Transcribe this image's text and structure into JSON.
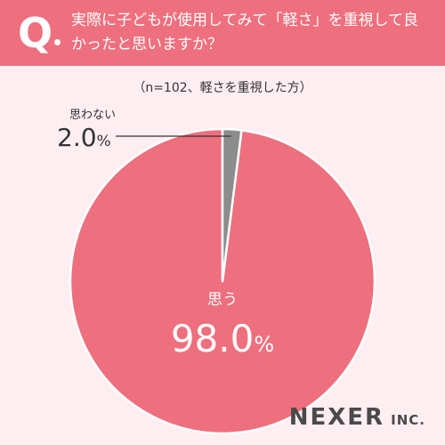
{
  "header": {
    "q_mark": "Q",
    "question": "実際に子どもが使用してみて「軽さ」を重視して良かったと思いますか？"
  },
  "note": "（n=102、軽さを重視した方）",
  "chart_data": {
    "type": "pie",
    "start_angle_deg": 0,
    "direction": "counterclockwise",
    "slices": [
      {
        "label": "思う",
        "value": 98.0,
        "value_text": "98.0",
        "color": "#ee6f7d"
      },
      {
        "label": "思わない",
        "value": 2.0,
        "value_text": "2.0",
        "color": "#8c8c8c"
      }
    ],
    "unit": "%"
  },
  "colors": {
    "header_bg": "#ee6f7d",
    "page_bg": "#fdeef1",
    "slice_edge": "#ffffff"
  },
  "logo": {
    "name": "NEXER",
    "suffix": "INC."
  }
}
